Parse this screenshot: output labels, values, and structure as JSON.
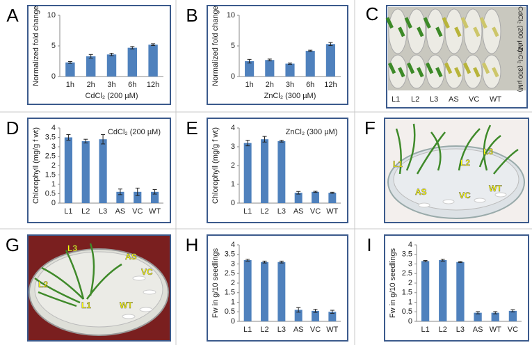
{
  "chart_data": [
    {
      "type": "bar",
      "panel": "A",
      "ylabel": "Normalized fold change",
      "xlabel": "CdCl₂  (200 µM)",
      "categories": [
        "1h",
        "2h",
        "3h",
        "6h",
        "12h"
      ],
      "values": [
        2.3,
        3.3,
        3.6,
        4.7,
        5.2
      ],
      "errors": [
        0.15,
        0.3,
        0.2,
        0.2,
        0.15
      ],
      "color": "#4f81bd",
      "ylim": [
        0,
        10
      ],
      "yticks": [
        0,
        5,
        10
      ]
    },
    {
      "type": "bar",
      "panel": "B",
      "ylabel": "Normalized fold change",
      "xlabel": "ZnCl₂  (300 µM)",
      "categories": [
        "1h",
        "2h",
        "3h",
        "6h",
        "12h"
      ],
      "values": [
        2.5,
        2.7,
        2.1,
        4.2,
        5.3
      ],
      "errors": [
        0.3,
        0.15,
        0.1,
        0.1,
        0.25
      ],
      "color": "#4f81bd",
      "ylim": [
        0,
        10
      ],
      "yticks": [
        0,
        5,
        10
      ]
    },
    {
      "type": "bar",
      "panel": "D",
      "ylabel": "Chlorophyll (mg/g f wt)",
      "annotation": "CdCl₂  (200 µM)",
      "categories": [
        "L1",
        "L2",
        "L3",
        "AS",
        "VC",
        "WT"
      ],
      "values": [
        3.5,
        3.3,
        3.4,
        0.6,
        0.6,
        0.6
      ],
      "errors": [
        0.15,
        0.1,
        0.25,
        0.15,
        0.2,
        0.12
      ],
      "color": "#4f81bd",
      "ylim": [
        0,
        4
      ],
      "yticks": [
        0,
        0.5,
        1,
        1.5,
        2,
        2.5,
        3,
        3.5,
        4
      ]
    },
    {
      "type": "bar",
      "panel": "E",
      "ylabel": "Chlorophyll (mg/g f wt)",
      "annotation": "ZnCl₂ (300 µM)",
      "categories": [
        "L1",
        "L2",
        "L3",
        "AS",
        "VC",
        "WT"
      ],
      "values": [
        3.2,
        3.4,
        3.3,
        0.55,
        0.6,
        0.55
      ],
      "errors": [
        0.15,
        0.15,
        0.05,
        0.07,
        0.03,
        0.03
      ],
      "color": "#4f81bd",
      "ylim": [
        0,
        4
      ],
      "yticks": [
        0,
        1,
        2,
        3,
        4
      ]
    },
    {
      "type": "bar",
      "panel": "H",
      "ylabel": "Fw  in g/10 seedlings",
      "categories": [
        "L1",
        "L2",
        "L3",
        "AS",
        "VC",
        "WT"
      ],
      "values": [
        3.2,
        3.1,
        3.1,
        0.6,
        0.55,
        0.5
      ],
      "errors": [
        0.05,
        0.05,
        0.05,
        0.12,
        0.08,
        0.08
      ],
      "color": "#4f81bd",
      "ylim": [
        0,
        4
      ],
      "yticks": [
        0,
        0.5,
        1,
        1.5,
        2,
        2.5,
        3,
        3.5,
        4
      ]
    },
    {
      "type": "bar",
      "panel": "I",
      "ylabel": "Fw  in g/10 seedlings",
      "categories": [
        "L1",
        "L2",
        "L3",
        "AS",
        "WT",
        "VC"
      ],
      "values": [
        3.15,
        3.2,
        3.1,
        0.45,
        0.45,
        0.55
      ],
      "errors": [
        0.03,
        0.05,
        0.03,
        0.06,
        0.06,
        0.06
      ],
      "color": "#4f81bd",
      "ylim": [
        0,
        4
      ],
      "yticks": [
        0,
        0.5,
        1,
        1.5,
        2,
        2.5,
        3,
        3.5,
        4
      ]
    }
  ],
  "photos": [
    {
      "panel": "C",
      "labels": [
        "L1",
        "L2",
        "L3",
        "AS",
        "VC",
        "WT"
      ],
      "side_labels": [
        "CdCl₂ (200 µM)",
        "ZnCl₂ (300 µM)"
      ]
    },
    {
      "panel": "F",
      "labels": [
        "L1",
        "L2",
        "L3",
        "AS",
        "VC",
        "WT"
      ]
    },
    {
      "panel": "G",
      "labels": [
        "L3",
        "AS",
        "VC",
        "L2",
        "L1",
        "WT"
      ]
    }
  ]
}
